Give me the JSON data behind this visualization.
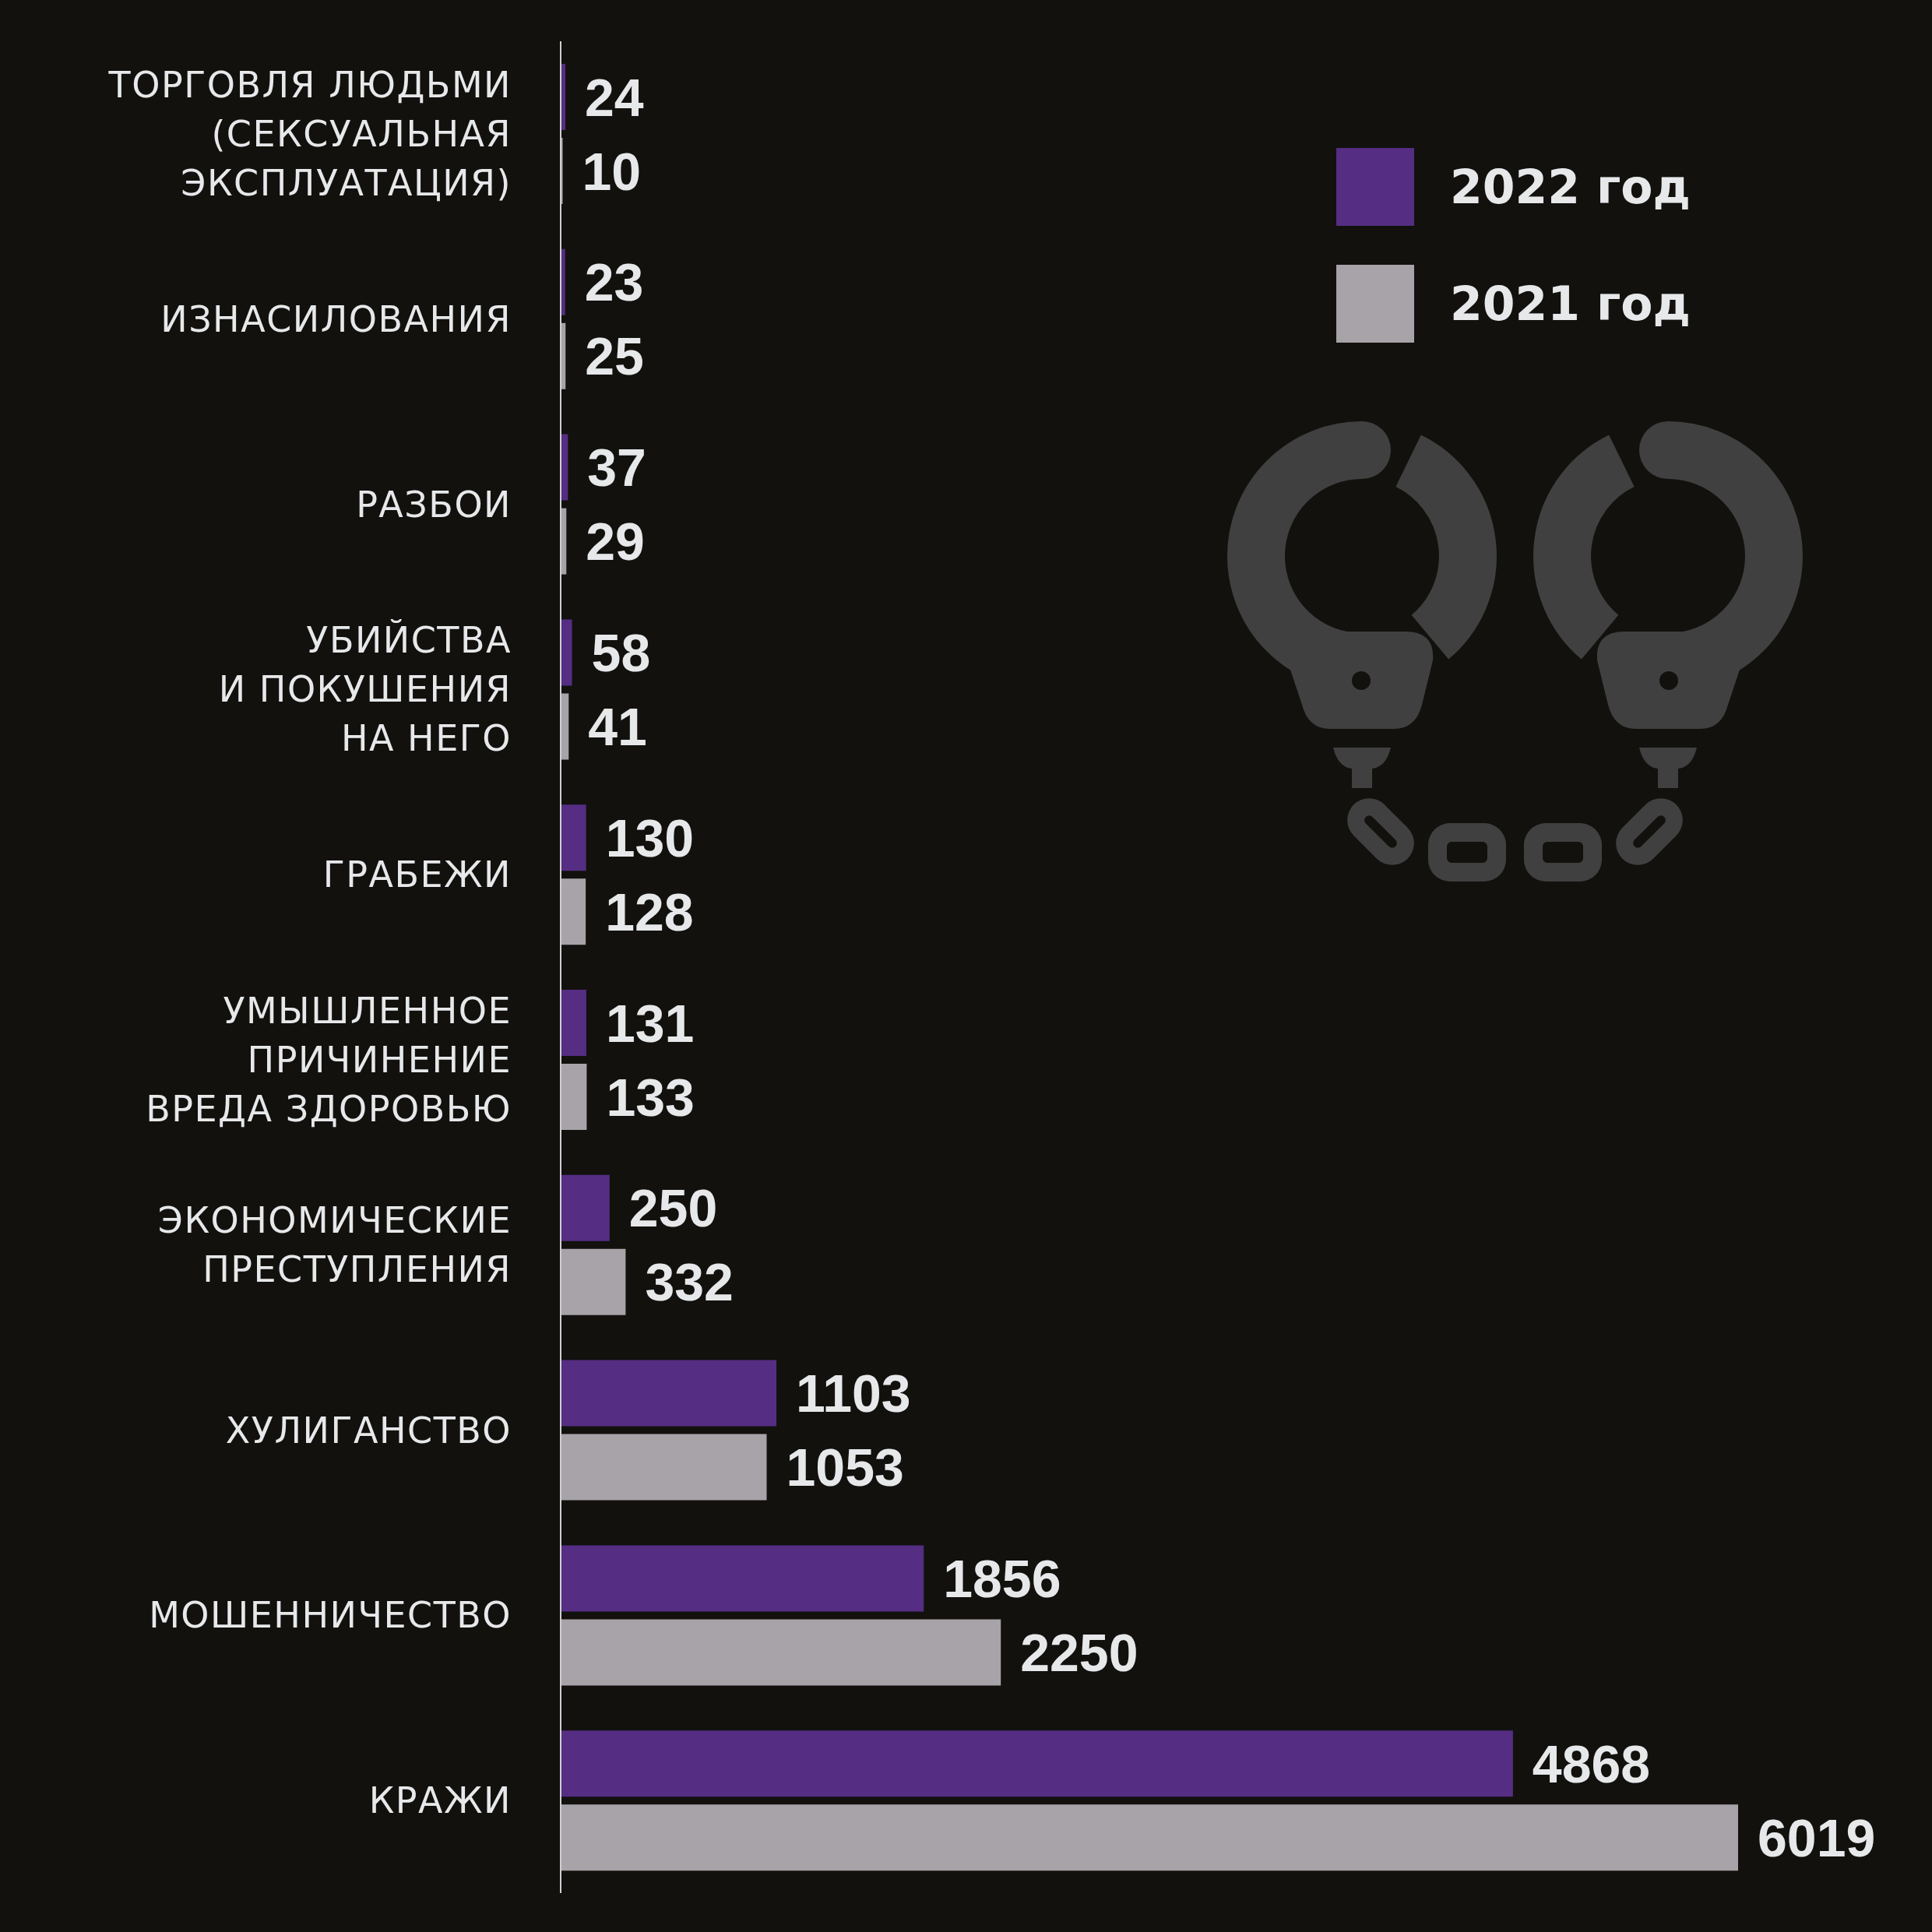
{
  "chart_data": {
    "type": "bar",
    "orientation": "horizontal",
    "categories": [
      "ТОРГОВЛЯ ЛЮДЬМИ\n(СЕКСУАЛЬНАЯ\nЭКСПЛУАТАЦИЯ)",
      "ИЗНАСИЛОВАНИЯ",
      "РАЗБОИ",
      "УБИЙСТВА\nИ ПОКУШЕНИЯ\nНА НЕГО",
      "ГРАБЕЖИ",
      "УМЫШЛЕННОЕ\nПРИЧИНЕНИЕ\nВРЕДА ЗДОРОВЬЮ",
      "ЭКОНОМИЧЕСКИЕ\nПРЕСТУПЛЕНИЯ",
      "ХУЛИГАНСТВО",
      "МОШЕННИЧЕСТВО",
      "КРАЖИ"
    ],
    "series": [
      {
        "name": "2022 год",
        "color": "#552d83",
        "values": [
          24,
          23,
          37,
          58,
          130,
          131,
          250,
          1103,
          1856,
          4868
        ]
      },
      {
        "name": "2021 год",
        "color": "#a7a3a8",
        "values": [
          10,
          25,
          29,
          41,
          128,
          133,
          332,
          1053,
          2250,
          6019
        ]
      }
    ],
    "xlim": [
      0,
      6019
    ],
    "tick_labels": "y",
    "data_labels": true,
    "legend": "top right"
  }
}
